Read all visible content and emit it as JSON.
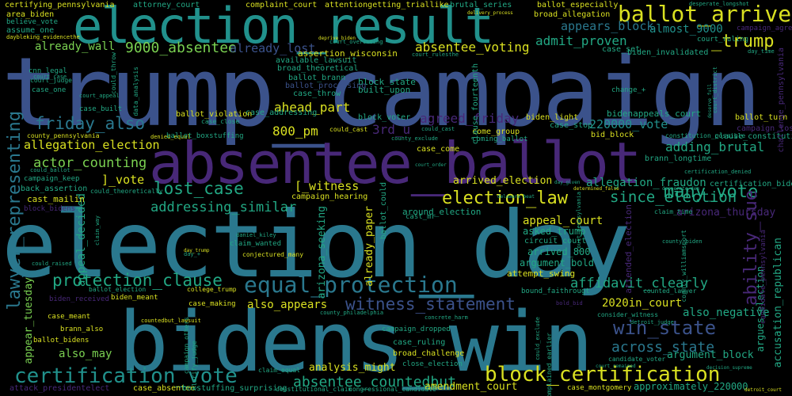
{
  "words": {
    "trump_campaign": "trump_campaign",
    "election_day": "election_day",
    "bidens_win": "bidens_win",
    "absentee_ballot": "absentee_ballot",
    "election_result": "election_result",
    "ballot_arrived": "ballot_arrived",
    "equal_protection": "equal_protection",
    "election_law": "election_law",
    "block_certification": "block_certification",
    "certification_vote": "certification_vote",
    "lawyer_representing": "lawyer_representing",
    "protection_clause": "protection_clause",
    "witness_statement": "witness_statement",
    "friday_also": "friday_also",
    "lost_case": "lost_case",
    "many_vote": "many_vote",
    "since_election": "since_election",
    "win_state": "win_state",
    "ability_sue": "ability_sue",
    "absentee_countedbut": "absentee_countedbut",
    "across_state": "across_state",
    "affidavit_clearly": "affidavit_clearly",
    "addressing_similar": "addressing_similar",
    "actor_counting": "actor_counting",
    "allegation_election": "allegation_election",
    "9000_absentee": "9000_absentee",
    "absentee_voting": "absentee_voting",
    "already_wall": "already_wall",
    "already_lost": "already_lost",
    "admit_proven": "admit_proven",
    "appears_block": "appears_block",
    "almost_9000": "almost_9000",
    "trump_underscore": "_trump",
    "ahead_part": "ahead_part",
    "agreed_friday": "agreed_friday",
    "3rd_u": "3rd_u",
    "800_pm": "800_pm",
    "220000_vote": "220000_vote",
    "adding_brutal": "adding_brutal",
    "allegation_fraudon": "allegation_fraudon",
    "arrived_election": "arrived_election",
    "witness_bracket": "[_witness",
    "vote_bracket": "]_vote",
    "analysis_might": "analysis_might",
    "amendment_court": "amendment_court",
    "2020in_court": "2020in_court",
    "also_negative": "also_negative",
    "argument_block": "argument_block",
    "also_may": "also_may",
    "also_appears": "also_appears",
    "appeal_decided": "appeal_decided",
    "appeal_court": "appeal_court",
    "arizona_seeking": "arizona_seeking",
    "already_paper": "already_paper",
    "appear_tuesday": "appear_tuesday",
    "accusation_republican": "accusation_republican",
    "argues_election": "argues_election",
    "approximately_220000": "approximately_220000",
    "arizona_thursday": "arizona_thursday",
    "asked_trump": "asked_trump",
    "arrived_800": "arrived_800",
    "argument_bold": "argument_bold",
    "attempt_swing": "attempt_swing",
    "around_election": "around_election",
    "block_state": "block_state",
    "built_upon": "built_upon",
    "assertion_wisconsin": "assertion_wisconsin",
    "available_lawsuit": "available_lawsuit",
    "broad_theoretical": "broad_theoretical",
    "ballot_brann": "ballot_brann",
    "ballot_processing": "ballot_processing",
    "case_throw": "case_throw",
    "case_addressing": "case_addressing",
    "ballot_violation": "ballot_violation",
    "block_voter": "block_voter",
    "biden_light": "biden_light",
    "bidenappeals_court": "bidenappeals_court",
    "ballot_turn": "ballot_turn",
    "bid_block": "bid_block",
    "case_stop": "case_stop",
    "case_come": "case_come",
    "come_group": "come_group",
    "coming_ballot": "coming_ballot",
    "campaign_lost": "campaign_lost",
    "clause_constitution": "clause_constitution",
    "brann_longtime": "brann_longtime",
    "certification_bidens": "certification_bidens",
    "biden_invalidated": "biden_invalidated",
    "campaign_agreed": "campaign_agreed",
    "case_set": "case_set",
    "court_ruling": "court_ruling",
    "broad_allegation": "broad_allegation",
    "ballot_especially": "ballot_especially",
    "attorney_court": "attorney_court",
    "complaint_court": "complaint_court",
    "attentiongetting_triallike": "attentiongetting_triallike",
    "brutal_series": "brutal_series",
    "certifying_pennsylvania": "certifying_pennsylvania",
    "area_biden": "area_biden",
    "believe_vote": "believe_vote",
    "assume_one": "assume_one",
    "cnn_legal": "cnn_legal",
    "case_one": "case_one",
    "county_pennsylvania": "county_pennsylvania",
    "campaign_keep": "campaign_keep",
    "back_assertion": "back_assertion",
    "cast_mailin": "cast_mailin",
    "block_bidens": "block_bidens",
    "campaign_hearing": "campaign_hearing",
    "claim_wanted": "claim_wanted",
    "conjectured_many": "conjectured_many",
    "circuit_court": "circuit_court",
    "bound_faithrougt": "bound_faithrougt",
    "counted_lawyer": "counted_lawyer",
    "case_making": "case_making",
    "biden_received": "biden_received",
    "biden_meant": "biden_meant",
    "ballot_election": "ballot_election",
    "college_trump": "college_trump",
    "case_meant": "case_meant",
    "brann_also": "brann_also",
    "ballot_bidens": "ballot_bidens",
    "attack_presidentelect": "attack_presidentelect",
    "case_absentee": "case_absentee",
    "boxstuffing_surprising": "boxstuffing_surprising",
    "constitutional_claim": "constitutional_claim",
    "congressional_candidate": "congressional_candidate",
    "case_montgomery": "case_montgomery",
    "campaign_dropped": "campaign_dropped",
    "broad_challenge": "broad_challenge",
    "close_election": "close_election",
    "case_ruling": "case_ruling",
    "claim_equal": "claim_equal",
    "candidate_voter": "candidate_voter",
    "consider_witness": "consider_witness",
    "detroit_judge": "detroit_judge",
    "claim_time": "claim_time",
    "cast_mr": "cast_mr",
    "certification_denied": "certification_denied",
    "court_judge": "court_judge",
    "court_case": "court_case",
    "change_plus": "change_+",
    "case_built": "case_built",
    "court_appeal": "court_appeal",
    "could_cast": "could_cast",
    "could_ballot": "could_ballot",
    "could_theoretically": "could_theoretically",
    "could_raised": "could_raised",
    "court_overseeing": "court_overseeing",
    "court_rulesthe": "court_rulesthe",
    "delivery_process": "delivery_process",
    "deprive_biden": "deprive_biden",
    "day_time": "day_time",
    "desperate_longshot": "desperate_longshot",
    "daybleking_evidencethe": "daybleking_evidencethe",
    "denied_equal": "denied_equal",
    "ballot_boxstuffing": "ballot_boxstuffing",
    "constitution_possible": "constitution_possible",
    "case_close": "case_close",
    "could_cast_small": "could_cast",
    "county_exclude": "county_exclude",
    "determined_false": "determined_false",
    "could_exclude": "could_exclude",
    "day_given": "day_given",
    "claim_way": "claim_way",
    "deserve_full": "deserve_full",
    "concrete_harm": "concrete_harm",
    "counted_lawsuit": "countedbut_lawsuit",
    "court_remained": "court_remained",
    "decision_supreme": "decision_supreme",
    "campaign_others": "campaign_others",
    "county_philadelphia": "county_philadelphia",
    "complained_earlier": "complained_earlier",
    "clarify_judge": "clarify_judge",
    "bold_bid": "bold_bid",
    "day_plus": "day_+",
    "could_throw": "could_throw",
    "data_analysis": "data_analysis",
    "court_order": "court_order",
    "ballot_could": "ballot_could",
    "attended_election": "attended_election",
    "challenge_pennsylvania": "challenge_pennsylvania",
    "court_district": "court_district",
    "clause_fourteenth": "clause_fourteenth",
    "court_pennsylvania": "court_pennsylvania",
    "county_williamsport": "county_williamsport",
    "candidate_pennsylvania": "candidate_pennsylvania",
    "daniel_kiley": "daniel_kiley",
    "delaware_beat": "delaware_beat",
    "county_biden": "county_biden",
    "day_trump": "day_trump",
    "detroit_court": "detroit_court",
    "desperate_dem": "desperate_dem"
  },
  "colors": {
    "teal": "#2a788e",
    "teal2": "#21918c",
    "green": "#22a884",
    "lime": "#7ad151",
    "yellow": "#d9e021",
    "blue": "#3b528b",
    "indigo": "#414487",
    "purple": "#482878",
    "violet": "#440154"
  }
}
